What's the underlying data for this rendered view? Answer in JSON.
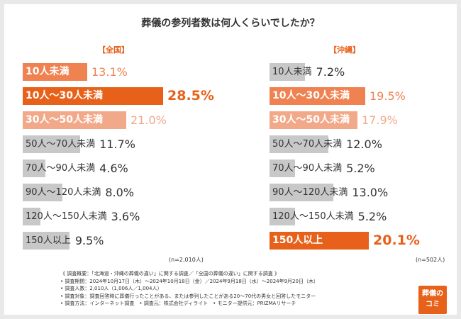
{
  "title": "葬儀の参列者数は何人くらいでしたか？",
  "panels": {
    "left": {
      "label": "【全国】",
      "n": "(n=2,010人)"
    },
    "right": {
      "label": "【沖縄】",
      "n": "(n=502人)"
    }
  },
  "chart_data": [
    {
      "type": "bar",
      "title": "【全国】",
      "categories": [
        "10人未満",
        "10人〜30人未満",
        "30人〜50人未満",
        "50人〜70人未満",
        "70人〜90人未満",
        "90人〜120人未満",
        "120人〜150人未満",
        "150人以上"
      ],
      "values": [
        13.1,
        28.5,
        21.0,
        11.7,
        4.6,
        8.0,
        3.6,
        9.5
      ],
      "value_labels": [
        "13.1%",
        "28.5%",
        "21.0%",
        "11.7%",
        "4.6%",
        "8.0%",
        "3.6%",
        "9.5%"
      ],
      "highlight": [
        2,
        3,
        1,
        0,
        0,
        0,
        0,
        0
      ],
      "xlim": [
        0,
        30
      ]
    },
    {
      "type": "bar",
      "title": "【沖縄】",
      "categories": [
        "10人未満",
        "10人〜30人未満",
        "30人〜50人未満",
        "50人〜70人未満",
        "70人〜90人未満",
        "90人〜120人未満",
        "120人〜150人未満",
        "150人以上"
      ],
      "values": [
        7.2,
        19.5,
        17.9,
        12.0,
        5.2,
        13.0,
        5.2,
        20.1
      ],
      "value_labels": [
        "7.2%",
        "19.5%",
        "17.9%",
        "12.0%",
        "5.2%",
        "13.0%",
        "5.2%",
        "20.1%"
      ],
      "highlight": [
        0,
        2,
        1,
        0,
        0,
        0,
        0,
        3
      ],
      "xlim": [
        0,
        30
      ]
    }
  ],
  "colors": {
    "rank1": "#e8611a",
    "rank2": "#ef8250",
    "rank3": "#f2a98a",
    "other": "#c8c8c8",
    "text_dark": "#333333"
  },
  "notes": [
    "《 調査概要：「北海道・沖縄の葬儀の違い」に関する調査／「全国の葬儀の違い」に関する調査 》",
    "• 調査期間：2024年10月17日（木）〜2024年10月18日（金）／2024年9月18日（水）〜2024年9月20日（木）",
    "• 調査人数：2,010人（1,006人／1,004人）",
    "• 調査対象：調査回答時に葬儀行ったことがある、または参列したことがある20〜70代の男女と回答したモニター",
    "• 調査方法：インターネット調査　• 調査元：株式会社ディライト　• モニター提供元：PRIZMAリサーチ"
  ],
  "logo": {
    "line1": "葬儀の",
    "line2": "コミ"
  }
}
